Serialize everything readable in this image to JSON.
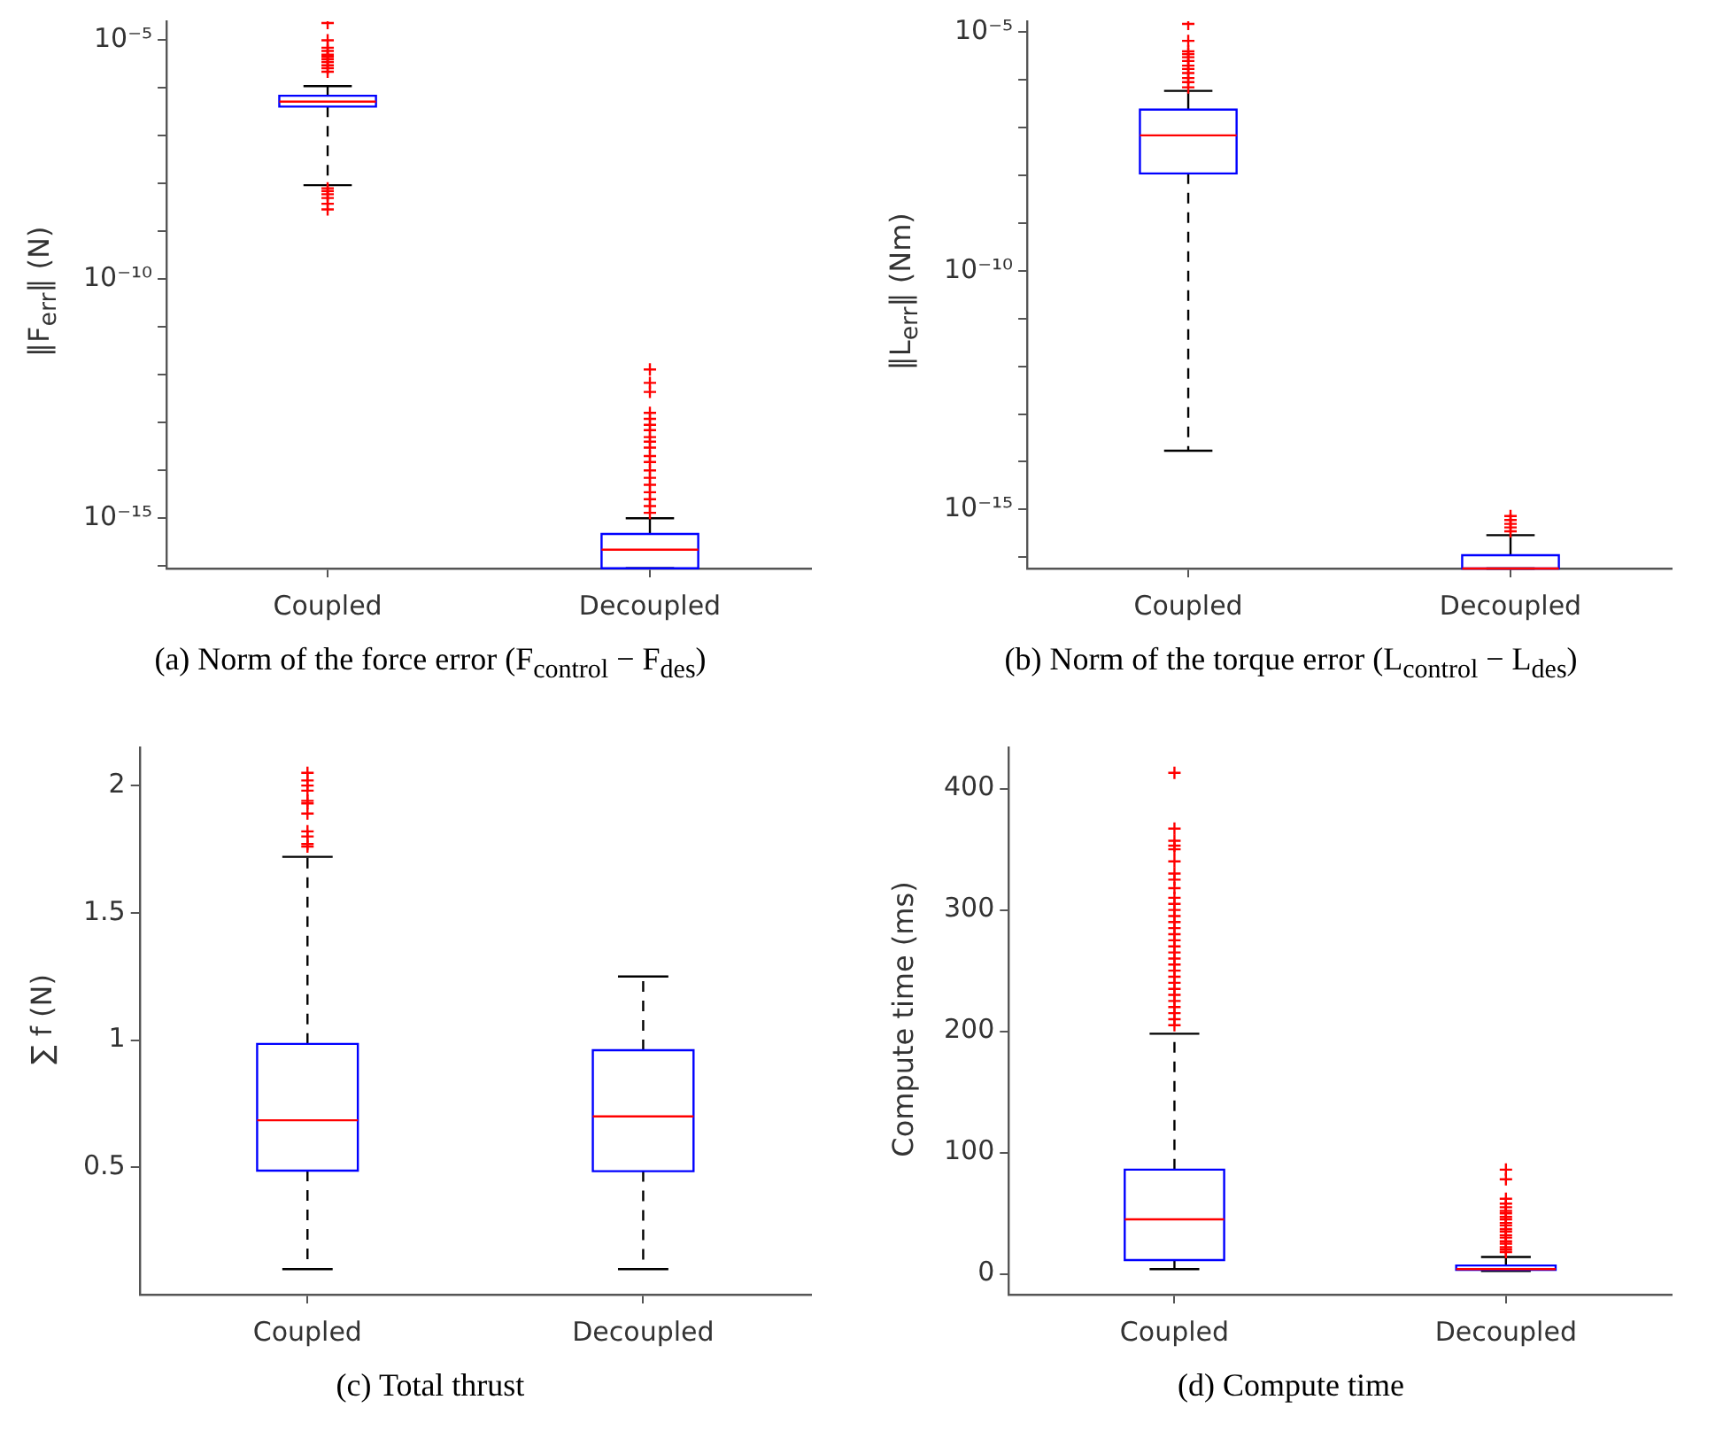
{
  "chart_data": [
    {
      "type": "box",
      "title": "(a) Norm of the force error (F$_{control}$ − F$_{des}$)",
      "ylabel": "‖F$_{err}$‖ (N)",
      "categories": [
        "Coupled",
        "Decoupled"
      ],
      "log": true,
      "marker": "cross",
      "ylim": [
        8.9e-17,
        2.5e-05
      ],
      "yticks": [
        {
          "value": 1e-16,
          "label": null
        },
        {
          "value": 1e-15,
          "label": "10⁻¹⁵"
        },
        {
          "value": 1e-14,
          "label": null
        },
        {
          "value": 1e-13,
          "label": null
        },
        {
          "value": 1e-12,
          "label": null
        },
        {
          "value": 1e-11,
          "label": null
        },
        {
          "value": 1e-10,
          "label": "10⁻¹⁰"
        },
        {
          "value": 1e-09,
          "label": null
        },
        {
          "value": 1e-08,
          "label": null
        },
        {
          "value": 1e-07,
          "label": null
        },
        {
          "value": 1e-06,
          "label": null
        },
        {
          "value": 1e-05,
          "label": "10⁻⁵"
        }
      ],
      "series": [
        {
          "color": "#0000ff",
          "boxes": [
            {
              "low": 9.3e-09,
              "q1": 4.1e-07,
              "median": 5.2e-07,
              "q3": 6.9e-07,
              "high": 1.1e-06,
              "outliers": [
                2.3e-05,
                1e-05,
                7e-06,
                6e-06,
                5e-06,
                4.5e-06,
                4e-06,
                3.5e-06,
                3e-06,
                2.6e-06,
                2.2e-06,
                8e-09,
                7e-09,
                6e-09,
                5e-09,
                3.8e-09,
                2.9e-09
              ]
            },
            {
              "low": 9e-17,
              "q1": 9e-17,
              "median": 2.2e-16,
              "q3": 4.7e-16,
              "high": 1e-15,
              "outliers": [
                1.3e-12,
                6.8e-13,
                4.4e-13,
                1.6e-13,
                1.2e-13,
                9e-14,
                7e-14,
                5e-14,
                4e-14,
                3e-14,
                2e-14,
                1.5e-14,
                1e-14,
                7e-15,
                5e-15,
                3.5e-15,
                2.5e-15,
                1.8e-15,
                1.3e-15
              ]
            }
          ]
        }
      ]
    },
    {
      "type": "box",
      "title": "(b) Norm of the torque error (L$_{control}$ − L$_{des}$)",
      "ylabel": "‖L$_{err}$‖ (Nm)",
      "categories": [
        "Coupled",
        "Decoupled"
      ],
      "log": true,
      "marker": "cross",
      "ylim": [
        5.8e-17,
        1.7e-05
      ],
      "yticks": [
        {
          "value": 1e-16,
          "label": null
        },
        {
          "value": 1e-15,
          "label": "10⁻¹⁵"
        },
        {
          "value": 1e-14,
          "label": null
        },
        {
          "value": 1e-13,
          "label": null
        },
        {
          "value": 1e-12,
          "label": null
        },
        {
          "value": 1e-11,
          "label": null
        },
        {
          "value": 1e-10,
          "label": "10⁻¹⁰"
        },
        {
          "value": 1e-09,
          "label": null
        },
        {
          "value": 1e-08,
          "label": null
        },
        {
          "value": 1e-07,
          "label": null
        },
        {
          "value": 1e-06,
          "label": null
        },
        {
          "value": 1e-05,
          "label": "10⁻⁵"
        }
      ],
      "series": [
        {
          "color": "#0000ff",
          "boxes": [
            {
              "low": 1.7e-14,
              "q1": 1.1e-08,
              "median": 6.9e-08,
              "q3": 2.4e-07,
              "high": 5.9e-07,
              "outliers": [
                1.5e-05,
                6.6e-06,
                4e-06,
                3.5e-06,
                3e-06,
                2.5e-06,
                2e-06,
                1.7e-06,
                1.4e-06,
                1.1e-06,
                9e-07,
                7e-07
              ]
            },
            {
              "low": 5.8e-17,
              "q1": 5.8e-17,
              "median": 5.8e-17,
              "q3": 1.1e-16,
              "high": 2.9e-16,
              "outliers": [
                7.3e-16,
                6e-16,
                5e-16,
                4.2e-16,
                3.5e-16
              ]
            }
          ]
        }
      ]
    },
    {
      "type": "box",
      "title": "(c) Total thrust",
      "ylabel": "∑ f (N)",
      "categories": [
        "Coupled",
        "Decoupled"
      ],
      "marker": "cross",
      "ylim": [
        0,
        2.15
      ],
      "yticks": [
        0.5,
        1,
        1.5,
        2
      ],
      "series": [
        {
          "color": "#0000ff",
          "boxes": [
            {
              "low": 0.1,
              "q1": 0.487,
              "median": 0.685,
              "q3": 0.985,
              "high": 1.72,
              "outliers": [
                2.05,
                2.02,
                2.0,
                1.98,
                1.94,
                1.93,
                1.89,
                1.82,
                1.8,
                1.77,
                1.76
              ]
            },
            {
              "low": 0.1,
              "q1": 0.485,
              "median": 0.7,
              "q3": 0.96,
              "high": 1.25
            }
          ]
        }
      ]
    },
    {
      "type": "box",
      "title": "(d) Compute time",
      "ylabel": "Compute time (ms)",
      "categories": [
        "Coupled",
        "Decoupled"
      ],
      "marker": "cross",
      "ylim": [
        -17,
        434
      ],
      "yticks": [
        0,
        100,
        200,
        300,
        400
      ],
      "series": [
        {
          "color": "#0000ff",
          "boxes": [
            {
              "low": 4,
              "q1": 11.5,
              "median": 45,
              "q3": 86,
              "high": 198,
              "outliers": [
                413,
                367,
                357,
                353,
                350,
                340,
                330,
                325,
                318,
                310,
                305,
                300,
                295,
                290,
                285,
                280,
                275,
                270,
                265,
                260,
                255,
                250,
                245,
                240,
                235,
                230,
                225,
                220,
                215,
                210,
                205
              ]
            },
            {
              "low": 2.4,
              "q1": 3.4,
              "median": 4,
              "q3": 7,
              "high": 14,
              "outliers": [
                86,
                78,
                62,
                58,
                55,
                52,
                50,
                47,
                45,
                42,
                40,
                37,
                35,
                32,
                30,
                27,
                25,
                22,
                20,
                18
              ]
            }
          ]
        }
      ]
    }
  ]
}
